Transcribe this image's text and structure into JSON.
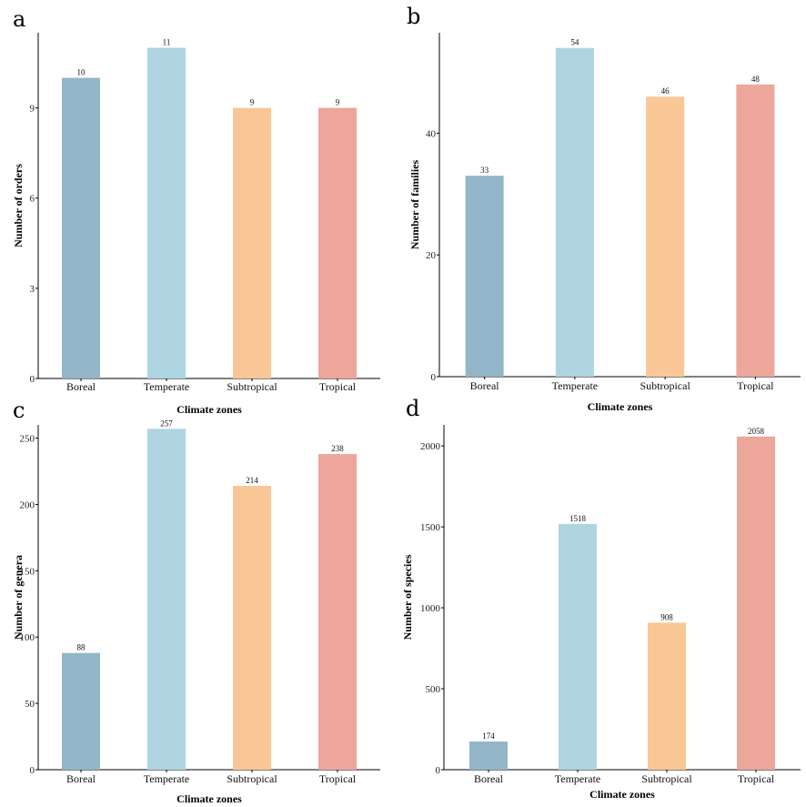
{
  "chart_data": [
    {
      "panel": "a",
      "type": "bar",
      "categories": [
        "Boreal",
        "Temperate",
        "Subtropical",
        "Tropical"
      ],
      "values": [
        10,
        11,
        9,
        9
      ],
      "data_labels": [
        "10",
        "11",
        "9",
        "9"
      ],
      "xlabel": "Climate zones",
      "ylabel": "Number of orders",
      "ylim": [
        0,
        11.5
      ],
      "yticks": [
        0,
        3,
        6,
        9
      ],
      "colors": [
        "#93b5c8",
        "#aed4e2",
        "#f9c795",
        "#eda69a"
      ],
      "grid": false
    },
    {
      "panel": "b",
      "type": "bar",
      "categories": [
        "Boreal",
        "Temperate",
        "Subtropical",
        "Tropical"
      ],
      "values": [
        33,
        54,
        46,
        48
      ],
      "data_labels": [
        "33",
        "54",
        "46",
        "48"
      ],
      "xlabel": "Climate zones",
      "ylabel": "Number of families",
      "ylim": [
        0,
        56.5
      ],
      "yticks": [
        0,
        20,
        40
      ],
      "colors": [
        "#93b5c8",
        "#aed4e2",
        "#f9c795",
        "#eda69a"
      ],
      "grid": false
    },
    {
      "panel": "c",
      "type": "bar",
      "categories": [
        "Boreal",
        "Temperate",
        "Subtropical",
        "Tropical"
      ],
      "values": [
        88,
        257,
        214,
        238
      ],
      "data_labels": [
        "88",
        "257",
        "214",
        "238"
      ],
      "xlabel": "Climate zones",
      "ylabel": "Number of genera",
      "ylim": [
        0,
        260
      ],
      "yticks": [
        0,
        50,
        100,
        150,
        200,
        250
      ],
      "colors": [
        "#93b5c8",
        "#aed4e2",
        "#f9c795",
        "#eda69a"
      ],
      "grid": false
    },
    {
      "panel": "d",
      "type": "bar",
      "categories": [
        "Boreal",
        "Temperate",
        "Subtropical",
        "Tropical"
      ],
      "values": [
        174,
        1518,
        908,
        2058
      ],
      "data_labels": [
        "174",
        "1518",
        "908",
        "2058"
      ],
      "xlabel": "Climate zones",
      "ylabel": "Number of species",
      "ylim": [
        0,
        2130
      ],
      "yticks": [
        0,
        500,
        1000,
        1500,
        2000
      ],
      "colors": [
        "#93b5c8",
        "#aed4e2",
        "#f9c795",
        "#eda69a"
      ],
      "grid": false
    }
  ]
}
